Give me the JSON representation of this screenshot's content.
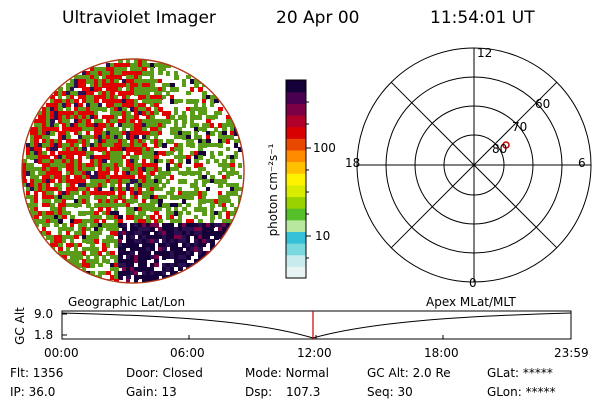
{
  "header": {
    "instrument": "Ultraviolet Imager",
    "date": "20 Apr 00",
    "time": "11:54:01 UT"
  },
  "colorbar": {
    "units_label": "photon cm⁻²s⁻¹",
    "ticks": [
      "100",
      "10"
    ],
    "colors": [
      "#e8f4f4",
      "#c8ecee",
      "#7ad9df",
      "#37c1d8",
      "#b8e8a0",
      "#56c02a",
      "#9ad200",
      "#d8ec00",
      "#fff200",
      "#ffc000",
      "#ff8c00",
      "#e84800",
      "#d80000",
      "#b0002a",
      "#7c0044",
      "#4a0050",
      "#15003a"
    ]
  },
  "polar": {
    "mlt_labels": {
      "top": "12",
      "left": "18",
      "right": "6",
      "bottom": "0"
    },
    "lat_labels": [
      "80",
      "70",
      "60"
    ]
  },
  "altitude_plot": {
    "ylabel": "GC Alt",
    "yticks": [
      "9.0",
      "1.8"
    ],
    "left_label": "Geographic Lat/Lon",
    "right_label": "Apex MLat/MLT",
    "xticks": [
      "00:00",
      "06:00",
      "12:00",
      "18:00",
      "23:59"
    ],
    "marker_color": "#cc0000"
  },
  "status": {
    "flt": "Flt: 1356",
    "ip": "IP: 36.0",
    "door": "Door: Closed",
    "gain": "Gain: 13",
    "mode": "Mode: Normal",
    "dsp": "Dsp:",
    "dsp_value": "107.3",
    "gc_alt": "GC Alt: 2.0 Re",
    "seq": "Seq: 30",
    "glat": "GLat: *****",
    "glon": "GLon: *****"
  }
}
